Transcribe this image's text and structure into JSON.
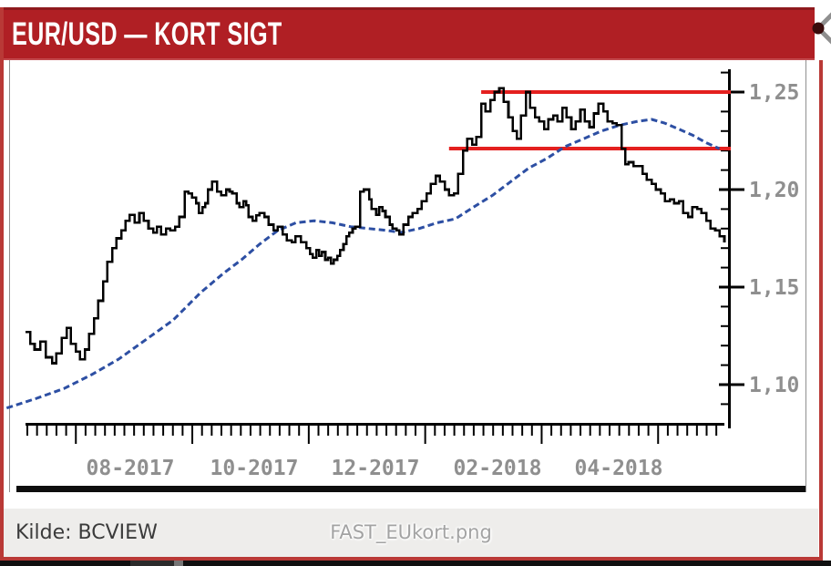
{
  "header": {
    "title": "EUR/USD — KORT SIGT"
  },
  "footer": {
    "source_label": "Kilde: BCVIEW",
    "filename": "FAST_EUkort.png"
  },
  "icons": {
    "top_right": "share-icon"
  },
  "colors": {
    "header_red": "#b01f24",
    "border_red": "#b93936",
    "price_black": "#000000",
    "ma_blue": "#2d4fa3",
    "resistance_red": "#e4201f",
    "axis_black": "#000000",
    "label_gray": "#8f8f8f",
    "footer_bg": "#eeedeb"
  },
  "chart_data": {
    "type": "line",
    "title": "EUR/USD — KORT SIGT",
    "grid": false,
    "legend": null,
    "x_axis": {
      "labels": [
        "08-2017",
        "10-2017",
        "12-2017",
        "02-2018",
        "04-2018"
      ]
    },
    "y_axis": {
      "major_labels": [
        "1,25",
        "1,20",
        "1,15",
        "1,10"
      ],
      "major_values": [
        1.25,
        1.2,
        1.15,
        1.1
      ],
      "minor_step": 0.01,
      "minor_range": [
        1.09,
        1.26
      ],
      "value_range_shown": [
        1.08,
        1.26
      ]
    },
    "annotations": {
      "resistance_lines": [
        {
          "value": 1.25,
          "from_t": 0.652
        },
        {
          "value": 1.221,
          "from_t": 0.606
        }
      ]
    },
    "series": [
      {
        "name": "EUR/USD spot",
        "style": "step",
        "color": "#000000",
        "points": [
          [
            0.0,
            1.127
          ],
          [
            0.007,
            1.121
          ],
          [
            0.013,
            1.118
          ],
          [
            0.021,
            1.122
          ],
          [
            0.029,
            1.114
          ],
          [
            0.038,
            1.111
          ],
          [
            0.044,
            1.116
          ],
          [
            0.052,
            1.124
          ],
          [
            0.059,
            1.129
          ],
          [
            0.065,
            1.121
          ],
          [
            0.072,
            1.117
          ],
          [
            0.078,
            1.113
          ],
          [
            0.085,
            1.118
          ],
          [
            0.091,
            1.126
          ],
          [
            0.098,
            1.134
          ],
          [
            0.104,
            1.143
          ],
          [
            0.111,
            1.153
          ],
          [
            0.117,
            1.163
          ],
          [
            0.124,
            1.17
          ],
          [
            0.13,
            1.175
          ],
          [
            0.137,
            1.179
          ],
          [
            0.143,
            1.184
          ],
          [
            0.149,
            1.187
          ],
          [
            0.156,
            1.183
          ],
          [
            0.163,
            1.188
          ],
          [
            0.169,
            1.184
          ],
          [
            0.176,
            1.18
          ],
          [
            0.183,
            1.178
          ],
          [
            0.188,
            1.181
          ],
          [
            0.194,
            1.177
          ],
          [
            0.201,
            1.18
          ],
          [
            0.207,
            1.179
          ],
          [
            0.214,
            1.181
          ],
          [
            0.22,
            1.186
          ],
          [
            0.228,
            1.199
          ],
          [
            0.233,
            1.198
          ],
          [
            0.244,
            1.193
          ],
          [
            0.248,
            1.188
          ],
          [
            0.253,
            1.191
          ],
          [
            0.257,
            1.193
          ],
          [
            0.261,
            1.2
          ],
          [
            0.267,
            1.204
          ],
          [
            0.274,
            1.199
          ],
          [
            0.28,
            1.197
          ],
          [
            0.287,
            1.2
          ],
          [
            0.292,
            1.199
          ],
          [
            0.296,
            1.198
          ],
          [
            0.302,
            1.193
          ],
          [
            0.306,
            1.191
          ],
          [
            0.312,
            1.194
          ],
          [
            0.316,
            1.192
          ],
          [
            0.319,
            1.186
          ],
          [
            0.325,
            1.184
          ],
          [
            0.335,
            1.188
          ],
          [
            0.342,
            1.186
          ],
          [
            0.348,
            1.182
          ],
          [
            0.355,
            1.179
          ],
          [
            0.361,
            1.181
          ],
          [
            0.368,
            1.177
          ],
          [
            0.374,
            1.174
          ],
          [
            0.381,
            1.173
          ],
          [
            0.386,
            1.176
          ],
          [
            0.394,
            1.173
          ],
          [
            0.402,
            1.17
          ],
          [
            0.407,
            1.167
          ],
          [
            0.411,
            1.165
          ],
          [
            0.416,
            1.169
          ],
          [
            0.42,
            1.166
          ],
          [
            0.424,
            1.168
          ],
          [
            0.429,
            1.164
          ],
          [
            0.433,
            1.165
          ],
          [
            0.437,
            1.162
          ],
          [
            0.441,
            1.164
          ],
          [
            0.446,
            1.166
          ],
          [
            0.45,
            1.169
          ],
          [
            0.455,
            1.172
          ],
          [
            0.459,
            1.176
          ],
          [
            0.463,
            1.178
          ],
          [
            0.468,
            1.18
          ],
          [
            0.472,
            1.181
          ],
          [
            0.479,
            1.199
          ],
          [
            0.484,
            1.2
          ],
          [
            0.492,
            1.195
          ],
          [
            0.495,
            1.19
          ],
          [
            0.502,
            1.187
          ],
          [
            0.506,
            1.191
          ],
          [
            0.511,
            1.189
          ],
          [
            0.515,
            1.186
          ],
          [
            0.521,
            1.182
          ],
          [
            0.525,
            1.18
          ],
          [
            0.531,
            1.179
          ],
          [
            0.535,
            1.177
          ],
          [
            0.541,
            1.182
          ],
          [
            0.548,
            1.186
          ],
          [
            0.554,
            1.188
          ],
          [
            0.561,
            1.19
          ],
          [
            0.567,
            1.194
          ],
          [
            0.574,
            1.198
          ],
          [
            0.58,
            1.203
          ],
          [
            0.587,
            1.207
          ],
          [
            0.593,
            1.204
          ],
          [
            0.6,
            1.2
          ],
          [
            0.606,
            1.197
          ],
          [
            0.613,
            1.198
          ],
          [
            0.619,
            1.208
          ],
          [
            0.626,
            1.22
          ],
          [
            0.632,
            1.226
          ],
          [
            0.639,
            1.223
          ],
          [
            0.645,
            1.227
          ],
          [
            0.652,
            1.244
          ],
          [
            0.658,
            1.24
          ],
          [
            0.665,
            1.246
          ],
          [
            0.671,
            1.25
          ],
          [
            0.678,
            1.252
          ],
          [
            0.684,
            1.245
          ],
          [
            0.691,
            1.237
          ],
          [
            0.697,
            1.23
          ],
          [
            0.703,
            1.226
          ],
          [
            0.709,
            1.238
          ],
          [
            0.716,
            1.25
          ],
          [
            0.722,
            1.242
          ],
          [
            0.729,
            1.237
          ],
          [
            0.735,
            1.235
          ],
          [
            0.742,
            1.231
          ],
          [
            0.748,
            1.236
          ],
          [
            0.755,
            1.238
          ],
          [
            0.761,
            1.235
          ],
          [
            0.768,
            1.242
          ],
          [
            0.774,
            1.237
          ],
          [
            0.781,
            1.231
          ],
          [
            0.787,
            1.235
          ],
          [
            0.794,
            1.241
          ],
          [
            0.8,
            1.235
          ],
          [
            0.807,
            1.232
          ],
          [
            0.813,
            1.239
          ],
          [
            0.82,
            1.244
          ],
          [
            0.827,
            1.24
          ],
          [
            0.833,
            1.235
          ],
          [
            0.84,
            1.234
          ],
          [
            0.846,
            1.233
          ],
          [
            0.853,
            1.221
          ],
          [
            0.858,
            1.213
          ],
          [
            0.863,
            1.214
          ],
          [
            0.87,
            1.212
          ],
          [
            0.876,
            1.212
          ],
          [
            0.883,
            1.208
          ],
          [
            0.889,
            1.205
          ],
          [
            0.896,
            1.203
          ],
          [
            0.902,
            1.2
          ],
          [
            0.909,
            1.198
          ],
          [
            0.915,
            1.194
          ],
          [
            0.922,
            1.195
          ],
          [
            0.928,
            1.193
          ],
          [
            0.935,
            1.194
          ],
          [
            0.941,
            1.188
          ],
          [
            0.948,
            1.186
          ],
          [
            0.954,
            1.191
          ],
          [
            0.961,
            1.19
          ],
          [
            0.967,
            1.188
          ],
          [
            0.974,
            1.184
          ],
          [
            0.98,
            1.18
          ],
          [
            0.987,
            1.179
          ],
          [
            0.993,
            1.176
          ],
          [
            1.0,
            1.173
          ]
        ]
      },
      {
        "name": "moving average",
        "style": "dashed",
        "color": "#2d4fa3",
        "points": [
          [
            -0.027,
            1.088
          ],
          [
            0.016,
            1.093
          ],
          [
            0.055,
            1.098
          ],
          [
            0.094,
            1.105
          ],
          [
            0.133,
            1.113
          ],
          [
            0.172,
            1.123
          ],
          [
            0.211,
            1.133
          ],
          [
            0.25,
            1.147
          ],
          [
            0.283,
            1.157
          ],
          [
            0.309,
            1.164
          ],
          [
            0.335,
            1.172
          ],
          [
            0.361,
            1.179
          ],
          [
            0.387,
            1.183
          ],
          [
            0.413,
            1.184
          ],
          [
            0.439,
            1.183
          ],
          [
            0.465,
            1.181
          ],
          [
            0.491,
            1.18
          ],
          [
            0.518,
            1.179
          ],
          [
            0.537,
            1.178
          ],
          [
            0.563,
            1.18
          ],
          [
            0.589,
            1.183
          ],
          [
            0.615,
            1.185
          ],
          [
            0.641,
            1.191
          ],
          [
            0.668,
            1.197
          ],
          [
            0.694,
            1.204
          ],
          [
            0.72,
            1.211
          ],
          [
            0.746,
            1.216
          ],
          [
            0.772,
            1.222
          ],
          [
            0.798,
            1.226
          ],
          [
            0.824,
            1.23
          ],
          [
            0.85,
            1.233
          ],
          [
            0.876,
            1.235
          ],
          [
            0.896,
            1.236
          ],
          [
            0.915,
            1.234
          ],
          [
            0.935,
            1.231
          ],
          [
            0.954,
            1.228
          ],
          [
            0.974,
            1.224
          ],
          [
            0.993,
            1.221
          ]
        ]
      }
    ]
  }
}
